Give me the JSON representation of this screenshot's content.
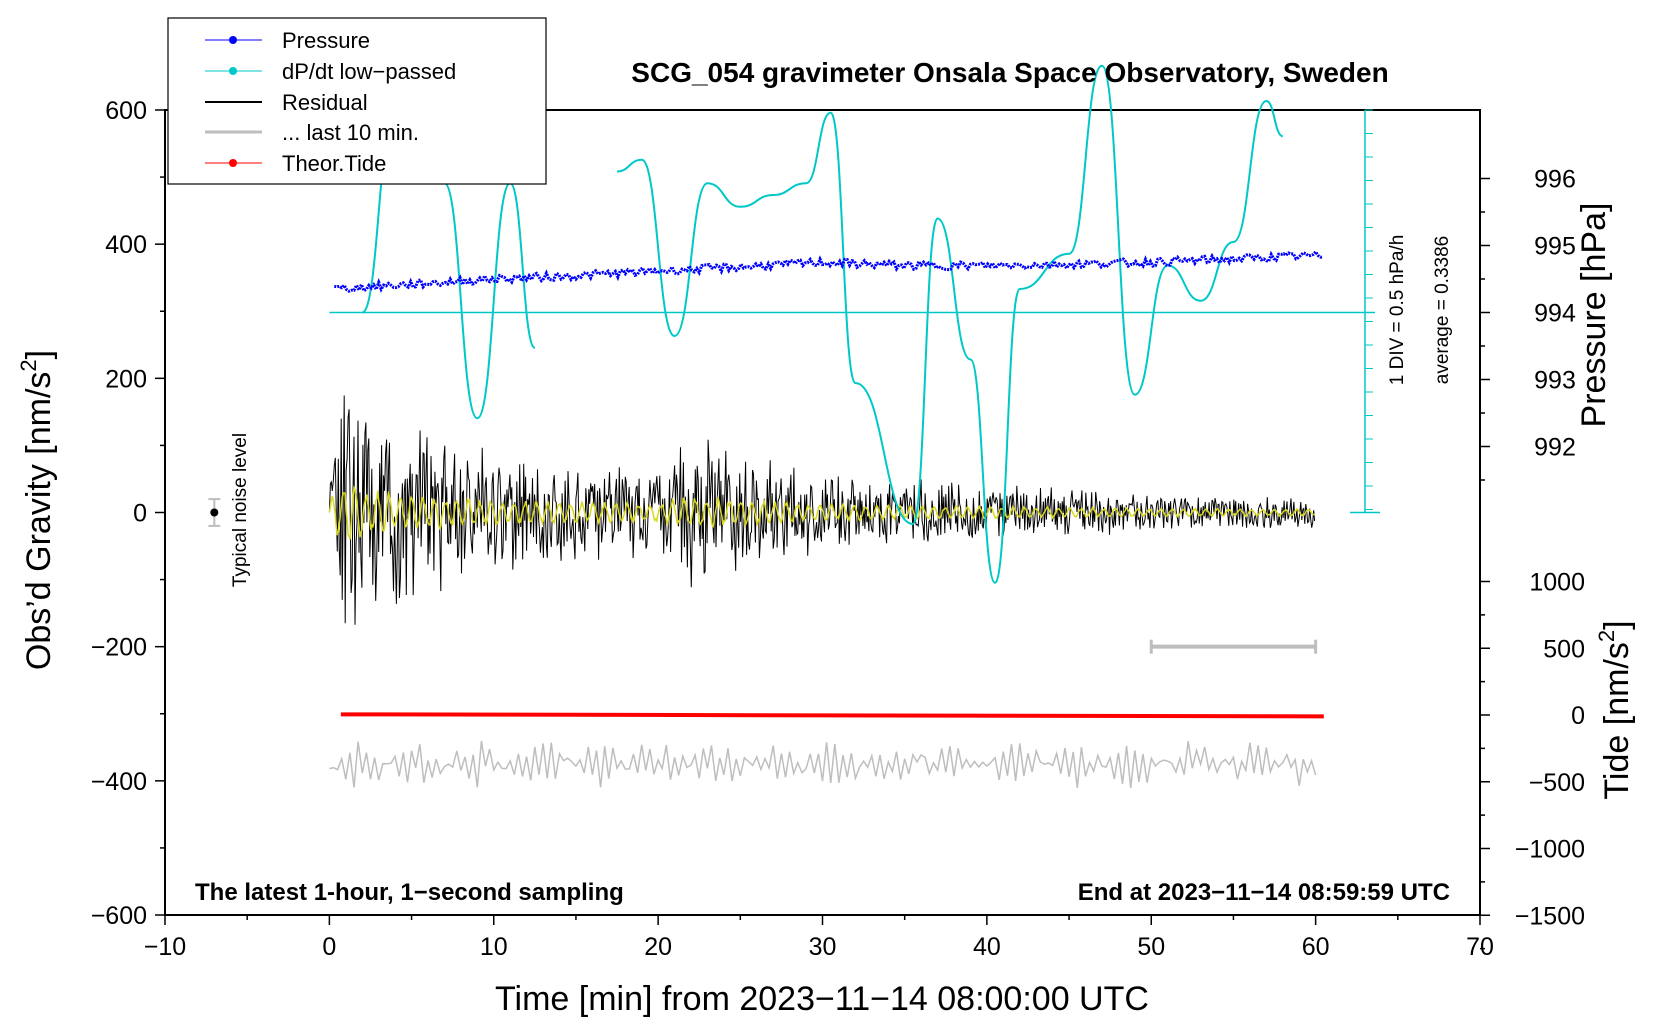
{
  "chart_data": {
    "type": "line",
    "title": "SCG_054 gravimeter Onsala Space Observatory, Sweden",
    "xlabel": "Time [min] from 2023−11−14 08:00:00 UTC",
    "ylabel_left": "Obs’d Gravity [nm/s",
    "ylabel_left_sup": "2",
    "ylabel_left_end": "]",
    "ylabel_right_pressure": "Pressure [hPa]",
    "ylabel_right_tide": "Tide [nm/s",
    "ylabel_right_tide_sup": "2",
    "ylabel_right_tide_end": "]",
    "xlim": [
      -10,
      70
    ],
    "ylim_left": [
      -600,
      600
    ],
    "x_ticks": [
      "−10",
      "0",
      "10",
      "20",
      "30",
      "40",
      "50",
      "60",
      "70"
    ],
    "y_ticks_left": [
      "600",
      "400",
      "200",
      "0",
      "−200",
      "−400",
      "−600"
    ],
    "pressure_ticks": [
      "996",
      "995",
      "994",
      "993",
      "992"
    ],
    "tide_ticks": [
      "1000",
      "500",
      "0",
      "−500",
      "−1000",
      "−1500"
    ],
    "left_note": "The latest 1-hour, 1−second sampling",
    "right_note": "End at 2023−11−14 08:59:59 UTC",
    "scale_label_1": "1 DIV = 0.5 hPa/h",
    "scale_label_2": "average = 0.3386",
    "noise_label": "Typical noise level",
    "legend": [
      {
        "label": "Pressure",
        "color": "#0000ff"
      },
      {
        "label": "dP/dt low−passed",
        "color": "#00c8c8"
      },
      {
        "label": "Residual",
        "color": "#000000"
      },
      {
        "label": "... last 10 min.",
        "color": "#bebebe"
      },
      {
        "label": "Theor.Tide",
        "color": "#ff0000"
      }
    ],
    "series": [
      {
        "name": "Pressure",
        "unit": "hPa",
        "x": [
          0,
          5,
          10,
          15,
          20,
          25,
          30,
          35,
          40,
          45,
          50,
          55,
          60
        ],
        "values": [
          994.35,
          994.42,
          994.5,
          994.55,
          994.62,
          994.68,
          994.75,
          994.7,
          994.7,
          994.72,
          994.75,
          994.8,
          994.85
        ]
      },
      {
        "name": "dP/dt low-passed",
        "unit": "hPa/h",
        "x": [
          2,
          4,
          5.5,
          7,
          9,
          11,
          12.5,
          17.5,
          19,
          21,
          23,
          25,
          27,
          29,
          30.5,
          32,
          35.5,
          37,
          39,
          40.5,
          42,
          45,
          47,
          49,
          51,
          53,
          55,
          57,
          58
        ],
        "values": [
          0.0,
          0.85,
          1.05,
          0.55,
          -0.45,
          0.55,
          -0.15,
          0.6,
          0.65,
          -0.1,
          0.55,
          0.45,
          0.5,
          0.55,
          0.85,
          -0.3,
          -0.9,
          0.4,
          -0.2,
          -1.15,
          0.1,
          0.25,
          1.05,
          -0.35,
          0.2,
          0.05,
          0.3,
          0.9,
          0.75
        ]
      },
      {
        "name": "Residual envelope",
        "unit": "nm/s2",
        "x": [
          0,
          1,
          2,
          5,
          10,
          15,
          20,
          22,
          30,
          40,
          50,
          60
        ],
        "values": [
          100,
          240,
          170,
          130,
          95,
          75,
          70,
          120,
          60,
          45,
          30,
          25
        ]
      },
      {
        "name": "Theor.Tide",
        "unit": "nm/s2",
        "x": [
          0,
          60
        ],
        "values": [
          5,
          -10
        ]
      }
    ]
  }
}
